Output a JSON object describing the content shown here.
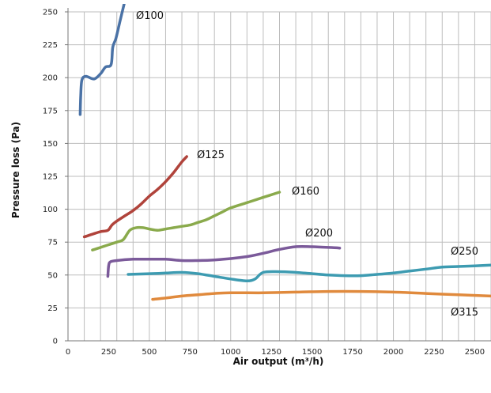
{
  "chart_data": {
    "type": "line",
    "title": "",
    "xlabel": "Air output (m³/h)",
    "ylabel": "Pressure loss (Pa)",
    "xlim": [
      0,
      2600
    ],
    "ylim": [
      0,
      250
    ],
    "xticks": [
      0,
      250,
      500,
      750,
      1000,
      1250,
      1500,
      1750,
      2000,
      2250,
      2500
    ],
    "yticks": [
      0,
      25,
      50,
      75,
      100,
      125,
      150,
      175,
      200,
      225,
      250
    ],
    "grid": true,
    "legend": "inline labels",
    "series": [
      {
        "name": "Ø100",
        "color": "#4a72a6",
        "x": [
          75,
          78,
          85,
          110,
          160,
          200,
          230,
          265,
          275,
          295,
          320,
          345
        ],
        "y": [
          172,
          185,
          198,
          201,
          199,
          203,
          208,
          210,
          223,
          230,
          243,
          256
        ]
      },
      {
        "name": "Ø125",
        "color": "#b0433b",
        "x": [
          100,
          150,
          200,
          245,
          270,
          300,
          350,
          400,
          450,
          500,
          550,
          600,
          650,
          700,
          730
        ],
        "y": [
          79,
          81,
          83,
          84,
          88,
          91,
          95,
          99,
          104,
          110,
          115,
          121,
          128,
          136,
          140
        ]
      },
      {
        "name": "Ø160",
        "color": "#8aaa4c",
        "x": [
          150,
          200,
          250,
          300,
          340,
          380,
          420,
          460,
          500,
          550,
          600,
          650,
          700,
          750,
          800,
          850,
          900,
          950,
          1000,
          1100,
          1200,
          1300
        ],
        "y": [
          69,
          71,
          73,
          75,
          77,
          84,
          86,
          86,
          85,
          84,
          85,
          86,
          87,
          88,
          90,
          92,
          95,
          98,
          101,
          105,
          109,
          113
        ]
      },
      {
        "name": "Ø200",
        "color": "#7b5a9a",
        "x": [
          245,
          250,
          260,
          300,
          400,
          500,
          600,
          700,
          800,
          900,
          1000,
          1100,
          1200,
          1300,
          1400,
          1500,
          1600,
          1670
        ],
        "y": [
          49,
          57,
          60,
          61,
          62,
          62,
          62,
          61,
          61,
          61.5,
          62.5,
          64,
          66.5,
          69.5,
          71.5,
          71.5,
          71,
          70.5
        ]
      },
      {
        "name": "Ø250",
        "color": "#3d9bb1",
        "x": [
          370,
          500,
          600,
          700,
          800,
          900,
          1000,
          1100,
          1150,
          1200,
          1300,
          1400,
          1500,
          1600,
          1700,
          1800,
          1900,
          2000,
          2100,
          2200,
          2300,
          2400,
          2500,
          2600
        ],
        "y": [
          50.5,
          51,
          51.5,
          52,
          51,
          49,
          47,
          45.5,
          47,
          52,
          52.5,
          52,
          51,
          50,
          49.5,
          49.5,
          50.5,
          51.5,
          53,
          54.5,
          56,
          56.5,
          57,
          57.5
        ]
      },
      {
        "name": "Ø315",
        "color": "#e08a3d",
        "x": [
          520,
          600,
          700,
          800,
          900,
          1000,
          1200,
          1400,
          1600,
          1800,
          2000,
          2200,
          2400,
          2600
        ],
        "y": [
          31.5,
          32.5,
          34,
          35,
          36,
          36.5,
          36.5,
          37,
          37.5,
          37.5,
          37,
          36,
          35,
          34
        ]
      }
    ]
  }
}
